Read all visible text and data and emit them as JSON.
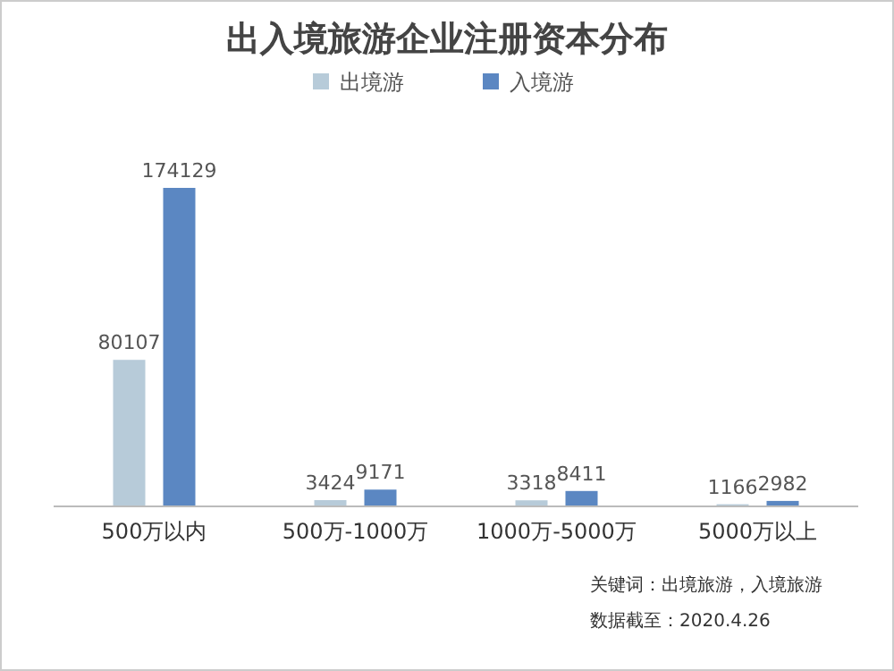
{
  "chart_data": {
    "type": "bar",
    "title": "出入境旅游企业注册资本分布",
    "categories": [
      "500万以内",
      "500万-1000万",
      "1000万-5000万",
      "5000万以上"
    ],
    "series": [
      {
        "name": "出境游",
        "color": "#b7cbd9",
        "values": [
          80107,
          3424,
          3318,
          1166
        ]
      },
      {
        "name": "入境游",
        "color": "#5b87c2",
        "values": [
          174129,
          9171,
          8411,
          2982
        ]
      }
    ],
    "data_labels": true,
    "legend": "top",
    "annotations": [
      "关键词：出境旅游，入境旅游",
      "数据截至：2020.4.26"
    ]
  }
}
